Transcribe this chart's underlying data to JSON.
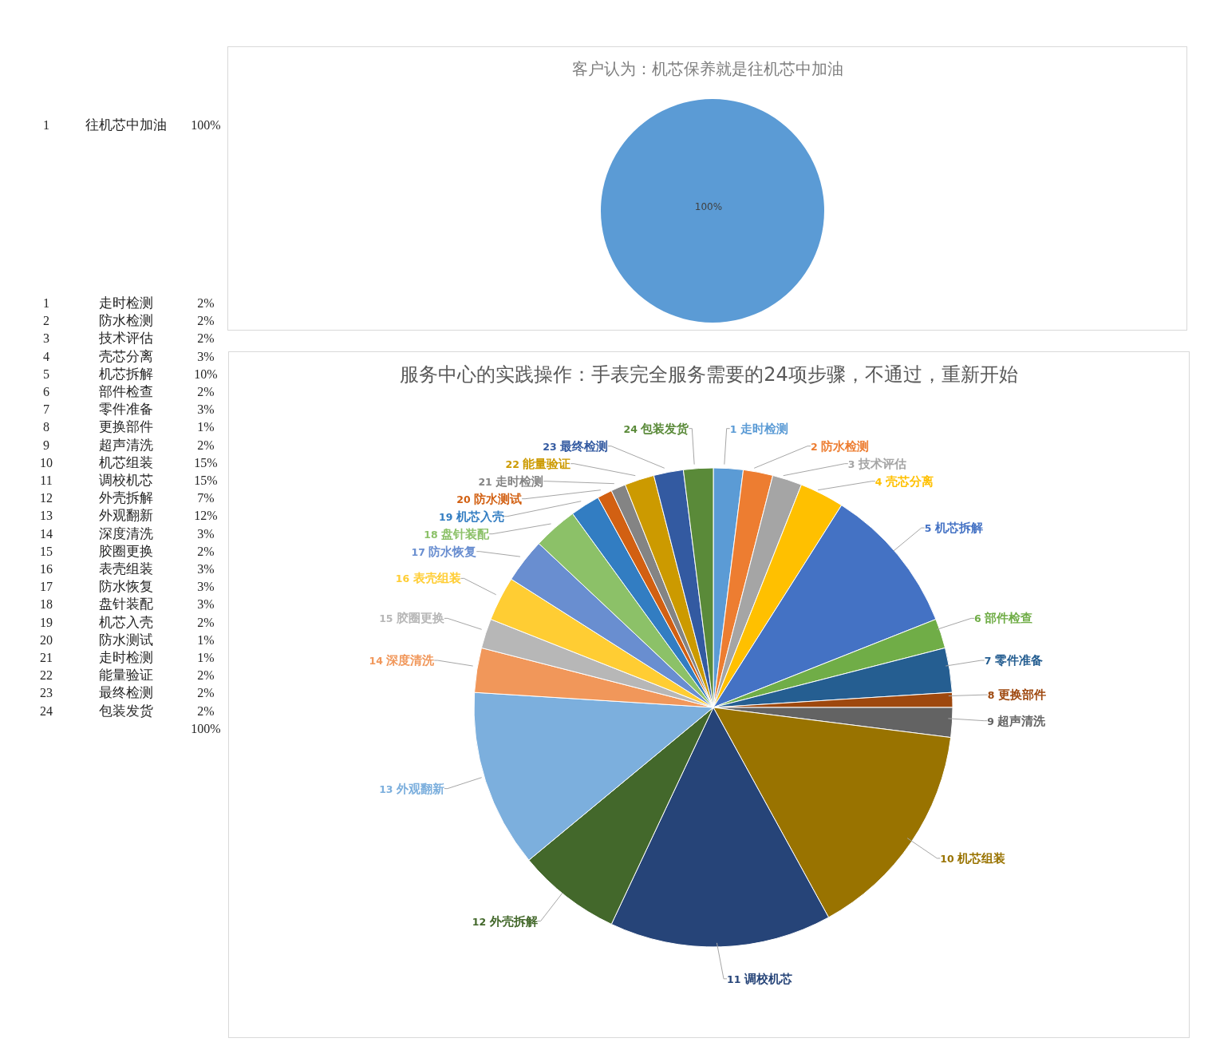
{
  "chart_data": [
    {
      "type": "pie",
      "title": "客户认为：机芯保养就是往机芯中加油",
      "categories": [
        "1 往机芯中加油"
      ],
      "values": [
        100
      ],
      "value_labels": [
        "100%"
      ],
      "colors": [
        "#5b9bd5"
      ]
    },
    {
      "type": "pie",
      "title": "服务中心的实践操作：手表完全服务需要的24项步骤，不通过，重新开始",
      "categories": [
        "1 走时检测",
        "2 防水检测",
        "3 技术评估",
        "4 壳芯分离",
        "5 机芯拆解",
        "6 部件检查",
        "7 零件准备",
        "8 更换部件",
        "9 超声清洗",
        "10 机芯组装",
        "11 调校机芯",
        "12 外壳拆解",
        "13 外观翻新",
        "14 深度清洗",
        "15 胶圈更换",
        "16 表壳组装",
        "17 防水恢复",
        "18 盘针装配",
        "19 机芯入壳",
        "20 防水测试",
        "21 走时检测",
        "22 能量验证",
        "23 最终检测",
        "24 包装发货"
      ],
      "values": [
        2,
        2,
        2,
        3,
        10,
        2,
        3,
        1,
        2,
        15,
        15,
        7,
        12,
        3,
        2,
        3,
        3,
        3,
        2,
        1,
        1,
        2,
        2,
        2
      ],
      "colors": [
        "#5b9bd5",
        "#ed7d31",
        "#a5a5a5",
        "#ffc000",
        "#4472c4",
        "#70ad47",
        "#255e91",
        "#9e480e",
        "#636363",
        "#997300",
        "#264478",
        "#43682b",
        "#7cafdd",
        "#f1975a",
        "#b7b7b7",
        "#ffcd33",
        "#698ed0",
        "#8cc168",
        "#327dc2",
        "#d26012",
        "#848484",
        "#cc9a00",
        "#335aa1",
        "#5a8a39"
      ],
      "annotations": [
        "2%",
        "2%",
        "2%",
        "3%",
        "10%",
        "2%",
        "3%",
        "1%",
        "2%",
        "15%",
        "15%",
        "7%",
        "12%",
        "3%",
        "2%",
        "3%",
        "3%",
        "3%",
        "2%",
        "1%",
        "1%",
        "2%",
        "2%",
        "2%",
        "100%"
      ]
    }
  ]
}
